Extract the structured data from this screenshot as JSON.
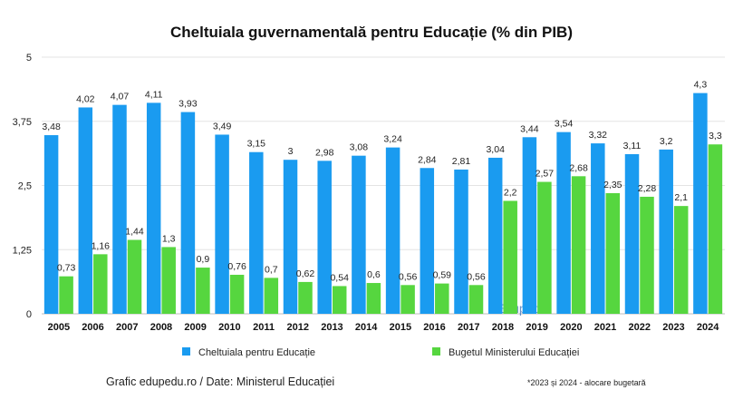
{
  "chart_data": {
    "type": "bar",
    "title": "Cheltuiala guvernamentală pentru Educație (% din PIB)",
    "categories": [
      "2005",
      "2006",
      "2007",
      "2008",
      "2009",
      "2010",
      "2011",
      "2012",
      "2013",
      "2014",
      "2015",
      "2016",
      "2017",
      "2018",
      "2019",
      "2020",
      "2021",
      "2022",
      "2023",
      "2024"
    ],
    "series": [
      {
        "name": "Cheltuiala pentru Educație",
        "color": "#1a9bf0",
        "values": [
          3.48,
          4.02,
          4.07,
          4.11,
          3.93,
          3.49,
          3.15,
          3,
          2.98,
          3.08,
          3.24,
          2.84,
          2.81,
          3.04,
          3.44,
          3.54,
          3.32,
          3.11,
          3.2,
          4.3
        ],
        "labels": [
          "3,48",
          "4,02",
          "4,07",
          "4,11",
          "3,93",
          "3,49",
          "3,15",
          "3",
          "2,98",
          "3,08",
          "3,24",
          "2,84",
          "2,81",
          "3,04",
          "3,44",
          "3,54",
          "3,32",
          "3,11",
          "3,2",
          "4,3"
        ]
      },
      {
        "name": "Bugetul Ministerului Educației",
        "color": "#56d63f",
        "values": [
          0.73,
          1.16,
          1.44,
          1.3,
          0.9,
          0.76,
          0.7,
          0.62,
          0.54,
          0.6,
          0.56,
          0.59,
          0.56,
          2.2,
          2.57,
          2.68,
          2.35,
          2.28,
          2.1,
          3.3
        ],
        "labels": [
          "0,73",
          "1,16",
          "1,44",
          "1,3",
          "0,9",
          "0,76",
          "0,7",
          "0,62",
          "0,54",
          "0,6",
          "0,56",
          "0,59",
          "0,56",
          "2,2",
          "2,57",
          "2,68",
          "2,35",
          "2,28",
          "2,1",
          "3,3"
        ]
      }
    ],
    "ylim": [
      0,
      5
    ],
    "yticks": [
      0,
      1.25,
      2.5,
      3.75,
      5
    ],
    "ytick_labels": [
      "0",
      "1,25",
      "2,5",
      "3,75",
      "5"
    ],
    "grid": true,
    "legend": "bottom"
  },
  "source": "Grafic edupedu.ro / Date: Ministerul Educației",
  "footnote": "*2023 și 2024 - alocare bugetară",
  "watermark": "Edupedu"
}
